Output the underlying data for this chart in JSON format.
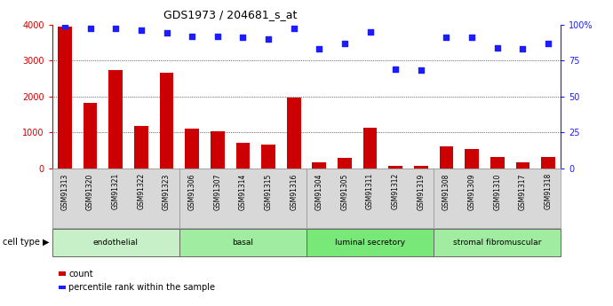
{
  "title": "GDS1973 / 204681_s_at",
  "samples": [
    "GSM91313",
    "GSM91320",
    "GSM91321",
    "GSM91322",
    "GSM91323",
    "GSM91306",
    "GSM91307",
    "GSM91314",
    "GSM91315",
    "GSM91316",
    "GSM91304",
    "GSM91305",
    "GSM91311",
    "GSM91312",
    "GSM91319",
    "GSM91308",
    "GSM91309",
    "GSM91310",
    "GSM91317",
    "GSM91318"
  ],
  "counts": [
    3950,
    1820,
    2720,
    1180,
    2660,
    1110,
    1040,
    710,
    650,
    1970,
    175,
    300,
    1120,
    60,
    60,
    620,
    530,
    310,
    160,
    310
  ],
  "percentile": [
    99,
    97,
    97,
    96,
    94,
    92,
    92,
    91,
    90,
    97,
    83,
    87,
    95,
    69,
    68,
    91,
    91,
    84,
    83,
    87
  ],
  "groups": [
    {
      "label": "endothelial",
      "start": 0,
      "end": 5,
      "color": "#b8f0b8"
    },
    {
      "label": "basal",
      "start": 5,
      "end": 10,
      "color": "#90e890"
    },
    {
      "label": "luminal secretory",
      "start": 10,
      "end": 15,
      "color": "#70e070"
    },
    {
      "label": "stromal fibromuscular",
      "start": 15,
      "end": 20,
      "color": "#50d850"
    }
  ],
  "bar_color": "#cc0000",
  "dot_color": "#1c1cff",
  "left_axis_color": "#cc0000",
  "right_axis_color": "#1c1cff",
  "ylim_left": [
    0,
    4000
  ],
  "ylim_right": [
    0,
    100
  ],
  "yticks_left": [
    0,
    1000,
    2000,
    3000,
    4000
  ],
  "yticks_right": [
    0,
    25,
    50,
    75,
    100
  ],
  "legend_count_label": "count",
  "legend_pct_label": "percentile rank within the sample",
  "cell_type_label": "cell type",
  "xtick_bg_color": "#d8d8d8",
  "group_colors": [
    "#c0f0c0",
    "#90e890",
    "#70e070",
    "#50d850"
  ]
}
